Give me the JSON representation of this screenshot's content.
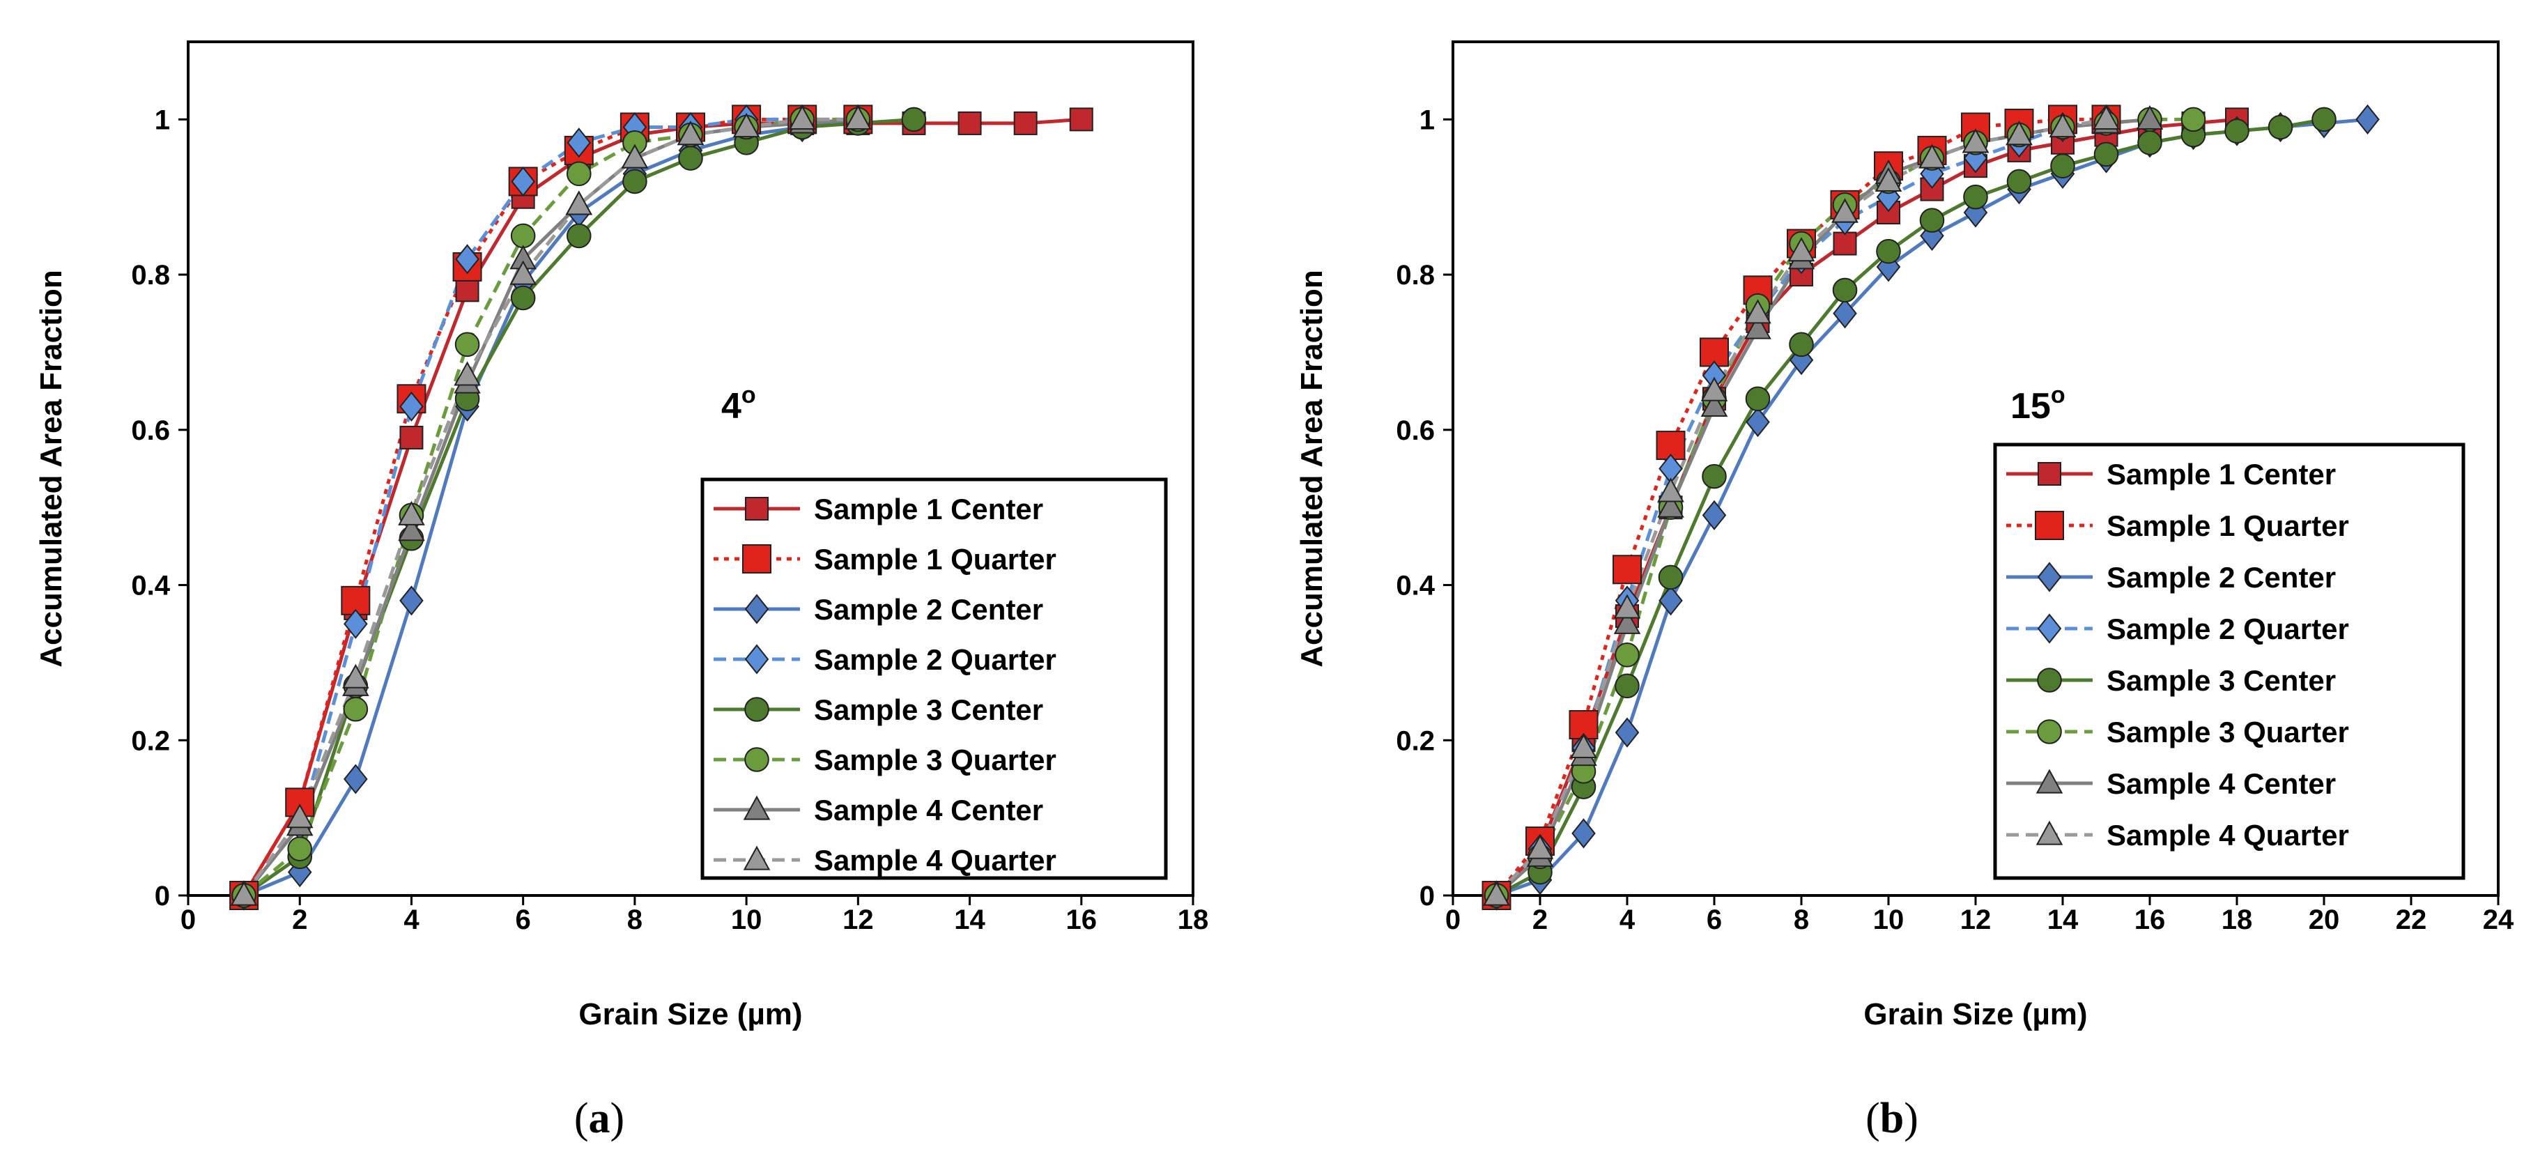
{
  "panels": [
    {
      "caption": {
        "open": "(",
        "letter": "a",
        "close": ")"
      },
      "chart_data": {
        "type": "line",
        "xlabel": "Grain Size (µm)",
        "ylabel": "Accumulated Area Fraction",
        "annotation": {
          "base": "4",
          "sup": "o"
        },
        "xlim": [
          0,
          18
        ],
        "ylim": [
          0,
          1.1
        ],
        "xticks": [
          0,
          2,
          4,
          6,
          8,
          10,
          12,
          14,
          16,
          18
        ],
        "yticks": [
          0,
          0.2,
          0.4,
          0.6,
          0.8,
          1
        ],
        "legend_position": "lower-right",
        "series": [
          {
            "name": "Sample 1 Center",
            "color": "#C0282D",
            "marker": "square",
            "dash": "solid",
            "x": [
              1,
              2,
              3,
              4,
              5,
              6,
              7,
              8,
              9,
              10,
              11,
              12,
              13,
              14,
              15,
              16
            ],
            "y": [
              0,
              0.12,
              0.37,
              0.59,
              0.78,
              0.9,
              0.95,
              0.98,
              0.99,
              0.995,
              0.995,
              0.995,
              0.995,
              0.995,
              0.995,
              1.0
            ]
          },
          {
            "name": "Sample 1 Quarter",
            "color": "#E0241B",
            "marker": "square",
            "dash": "dotted",
            "x": [
              1,
              2,
              3,
              4,
              5,
              6,
              7,
              8,
              9,
              10,
              11,
              12
            ],
            "y": [
              0,
              0.12,
              0.38,
              0.64,
              0.81,
              0.92,
              0.96,
              0.99,
              0.99,
              1.0,
              1.0,
              1.0
            ]
          },
          {
            "name": "Sample 2 Center",
            "color": "#4F7AC0",
            "marker": "diamond",
            "dash": "solid",
            "x": [
              1,
              2,
              3,
              4,
              5,
              6,
              7,
              8,
              9,
              10,
              11,
              12
            ],
            "y": [
              0,
              0.03,
              0.15,
              0.38,
              0.63,
              0.79,
              0.88,
              0.93,
              0.96,
              0.98,
              0.99,
              1.0
            ]
          },
          {
            "name": "Sample 2 Quarter",
            "color": "#5B8FD9",
            "marker": "diamond",
            "dash": "dashed",
            "x": [
              1,
              2,
              3,
              4,
              5,
              6,
              7,
              8,
              9,
              10,
              11
            ],
            "y": [
              0,
              0.09,
              0.35,
              0.63,
              0.82,
              0.92,
              0.97,
              0.99,
              0.99,
              1.0,
              1.0
            ]
          },
          {
            "name": "Sample 3 Center",
            "color": "#4E7A2E",
            "marker": "circle",
            "dash": "solid",
            "x": [
              1,
              2,
              3,
              4,
              5,
              6,
              7,
              8,
              9,
              10,
              11,
              12,
              13
            ],
            "y": [
              0,
              0.05,
              0.27,
              0.46,
              0.64,
              0.77,
              0.85,
              0.92,
              0.95,
              0.97,
              0.99,
              0.995,
              1.0
            ]
          },
          {
            "name": "Sample 3 Quarter",
            "color": "#6A9C3E",
            "marker": "circle",
            "dash": "dashed",
            "x": [
              1,
              2,
              3,
              4,
              5,
              6,
              7,
              8,
              9,
              10,
              11,
              12
            ],
            "y": [
              0,
              0.06,
              0.24,
              0.49,
              0.71,
              0.85,
              0.93,
              0.97,
              0.98,
              0.99,
              1.0,
              1.0
            ]
          },
          {
            "name": "Sample 4 Center",
            "color": "#808080",
            "marker": "triangle",
            "dash": "solid",
            "x": [
              1,
              2,
              3,
              4,
              5,
              6,
              7,
              8,
              9,
              10,
              11,
              12
            ],
            "y": [
              0,
              0.09,
              0.27,
              0.47,
              0.66,
              0.82,
              0.89,
              0.95,
              0.98,
              0.99,
              0.995,
              1.0
            ]
          },
          {
            "name": "Sample 4 Quarter",
            "color": "#999999",
            "marker": "triangle",
            "dash": "dashed",
            "x": [
              1,
              2,
              3,
              4,
              5,
              6,
              7,
              8,
              9,
              10,
              11,
              12
            ],
            "y": [
              0,
              0.1,
              0.28,
              0.49,
              0.67,
              0.8,
              0.89,
              0.95,
              0.98,
              0.99,
              1.0,
              1.0
            ]
          }
        ]
      }
    },
    {
      "caption": {
        "open": "(",
        "letter": "b",
        "close": ")"
      },
      "chart_data": {
        "type": "line",
        "xlabel": "Grain Size (µm)",
        "ylabel": "Accumulated Area Fraction",
        "annotation": {
          "base": "15",
          "sup": "o"
        },
        "xlim": [
          0,
          24
        ],
        "ylim": [
          0,
          1.1
        ],
        "xticks": [
          0,
          2,
          4,
          6,
          8,
          10,
          12,
          14,
          16,
          18,
          20,
          22,
          24
        ],
        "yticks": [
          0,
          0.2,
          0.4,
          0.6,
          0.8,
          1
        ],
        "legend_position": "lower-right",
        "series": [
          {
            "name": "Sample 1 Center",
            "color": "#C0282D",
            "marker": "square",
            "dash": "solid",
            "x": [
              1,
              2,
              3,
              4,
              5,
              6,
              7,
              8,
              9,
              10,
              11,
              12,
              13,
              14,
              15,
              16,
              17,
              18
            ],
            "y": [
              0,
              0.06,
              0.2,
              0.36,
              0.5,
              0.64,
              0.74,
              0.8,
              0.84,
              0.88,
              0.91,
              0.94,
              0.96,
              0.97,
              0.98,
              0.99,
              0.995,
              1.0
            ]
          },
          {
            "name": "Sample 1 Quarter",
            "color": "#E0241B",
            "marker": "square",
            "dash": "dotted",
            "x": [
              1,
              2,
              3,
              4,
              5,
              6,
              7,
              8,
              9,
              10,
              11,
              12,
              13,
              14,
              15
            ],
            "y": [
              0,
              0.07,
              0.22,
              0.42,
              0.58,
              0.7,
              0.78,
              0.84,
              0.89,
              0.94,
              0.96,
              0.99,
              0.995,
              1.0,
              1.0
            ]
          },
          {
            "name": "Sample 2 Center",
            "color": "#4F7AC0",
            "marker": "diamond",
            "dash": "solid",
            "x": [
              1,
              2,
              3,
              4,
              5,
              6,
              7,
              8,
              9,
              10,
              11,
              12,
              13,
              14,
              15,
              16,
              17,
              18,
              19,
              20,
              21
            ],
            "y": [
              0,
              0.02,
              0.08,
              0.21,
              0.38,
              0.49,
              0.61,
              0.69,
              0.75,
              0.81,
              0.85,
              0.88,
              0.91,
              0.93,
              0.95,
              0.97,
              0.98,
              0.985,
              0.99,
              0.995,
              1.0
            ]
          },
          {
            "name": "Sample 2 Quarter",
            "color": "#5B8FD9",
            "marker": "diamond",
            "dash": "dashed",
            "x": [
              1,
              2,
              3,
              4,
              5,
              6,
              7,
              8,
              9,
              10,
              11,
              12,
              13,
              14,
              15
            ],
            "y": [
              0,
              0.06,
              0.19,
              0.38,
              0.55,
              0.67,
              0.75,
              0.82,
              0.87,
              0.9,
              0.93,
              0.95,
              0.97,
              0.99,
              1.0
            ]
          },
          {
            "name": "Sample 3 Center",
            "color": "#4E7A2E",
            "marker": "circle",
            "dash": "solid",
            "x": [
              1,
              2,
              3,
              4,
              5,
              6,
              7,
              8,
              9,
              10,
              11,
              12,
              13,
              14,
              15,
              16,
              17,
              18,
              19,
              20
            ],
            "y": [
              0,
              0.03,
              0.14,
              0.27,
              0.41,
              0.54,
              0.64,
              0.71,
              0.78,
              0.83,
              0.87,
              0.9,
              0.92,
              0.94,
              0.955,
              0.97,
              0.98,
              0.985,
              0.99,
              1.0
            ]
          },
          {
            "name": "Sample 3 Quarter",
            "color": "#6A9C3E",
            "marker": "circle",
            "dash": "dashed",
            "x": [
              1,
              2,
              3,
              4,
              5,
              6,
              7,
              8,
              9,
              10,
              11,
              12,
              13,
              14,
              15,
              16,
              17
            ],
            "y": [
              0,
              0.05,
              0.16,
              0.31,
              0.5,
              0.64,
              0.76,
              0.84,
              0.89,
              0.92,
              0.95,
              0.97,
              0.98,
              0.99,
              0.995,
              1.0,
              1.0
            ]
          },
          {
            "name": "Sample 4 Center",
            "color": "#808080",
            "marker": "triangle",
            "dash": "solid",
            "x": [
              1,
              2,
              3,
              4,
              5,
              6,
              7,
              8,
              9,
              10,
              11,
              12,
              13,
              14,
              15,
              16
            ],
            "y": [
              0,
              0.05,
              0.18,
              0.35,
              0.5,
              0.63,
              0.73,
              0.82,
              0.88,
              0.93,
              0.95,
              0.97,
              0.98,
              0.99,
              0.995,
              1.0
            ]
          },
          {
            "name": "Sample 4 Quarter",
            "color": "#999999",
            "marker": "triangle",
            "dash": "dashed",
            "x": [
              1,
              2,
              3,
              4,
              5,
              6,
              7,
              8,
              9,
              10,
              11,
              12,
              13,
              14,
              15
            ],
            "y": [
              0,
              0.06,
              0.19,
              0.37,
              0.52,
              0.65,
              0.75,
              0.83,
              0.88,
              0.92,
              0.95,
              0.97,
              0.98,
              0.99,
              1.0
            ]
          }
        ]
      }
    }
  ]
}
